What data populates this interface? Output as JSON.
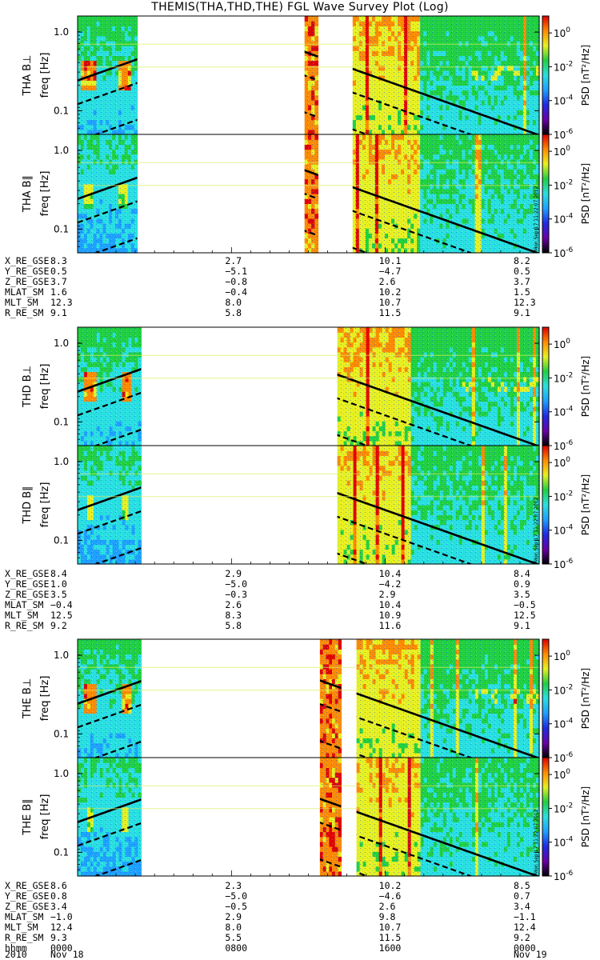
{
  "chart_data": {
    "type": "heatmap",
    "title": "THEMIS(THA,THD,THE) FGL Wave Survey Plot (Log)",
    "x_tick_labels": [
      "0000",
      "0800",
      "1600",
      "0000"
    ],
    "x_date_labels": [
      "2010",
      "Nov 18",
      "Nov 19"
    ],
    "x_unit_label": "hhmm",
    "ylim_hz": [
      0.05,
      1.6
    ],
    "y_scale": "log",
    "y_tick_labels": [
      "0.1",
      "1.0"
    ],
    "colorbar": {
      "label": "PSD [nT²/Hz]",
      "scale": "log",
      "range": [
        1e-06,
        10
      ],
      "tick_exponents": [
        "0",
        "-2",
        "-4",
        "-6"
      ],
      "colormap": [
        "#000000",
        "#6a00a8",
        "#1e2be6",
        "#1ea0ff",
        "#29e0e0",
        "#20d040",
        "#e8f020",
        "#ff8a00",
        "#e00000"
      ]
    },
    "stamp": "Mon Sep 17 11:22:07 2012",
    "panels": [
      {
        "probe": "THA",
        "label": "THA B⊥",
        "component": "perp",
        "data_intervals": [
          [
            0.0,
            3.1
          ],
          [
            11.8,
            12.5
          ],
          [
            14.3,
            24.0
          ]
        ]
      },
      {
        "probe": "THA",
        "label": "THA B∥",
        "component": "par",
        "data_intervals": [
          [
            0.0,
            3.1
          ],
          [
            11.8,
            12.5
          ],
          [
            14.3,
            24.0
          ]
        ]
      },
      {
        "probe": "THD",
        "label": "THD B⊥",
        "component": "perp",
        "data_intervals": [
          [
            0.0,
            3.3
          ],
          [
            13.5,
            24.0
          ]
        ]
      },
      {
        "probe": "THD",
        "label": "THD B∥",
        "component": "par",
        "data_intervals": [
          [
            0.0,
            3.3
          ],
          [
            13.5,
            24.0
          ]
        ]
      },
      {
        "probe": "THE",
        "label": "THE B⊥",
        "component": "perp",
        "data_intervals": [
          [
            0.0,
            3.3
          ],
          [
            12.6,
            13.7
          ],
          [
            14.5,
            24.0
          ]
        ]
      },
      {
        "probe": "THE",
        "label": "THE B∥",
        "component": "par",
        "data_intervals": [
          [
            0.0,
            3.3
          ],
          [
            12.6,
            13.7
          ],
          [
            14.5,
            24.0
          ]
        ]
      }
    ],
    "ephemeris": [
      {
        "probe": "THA",
        "rows": [
          {
            "name": "X_RE_GSE",
            "values": [
              "8.3",
              "2.7",
              "10.1",
              "8.2"
            ]
          },
          {
            "name": "Y_RE_GSE",
            "values": [
              "0.5",
              "−5.1",
              "−4.7",
              "0.5"
            ]
          },
          {
            "name": "Z_RE_GSE",
            "values": [
              "3.7",
              "−0.8",
              "2.6",
              "3.7"
            ]
          },
          {
            "name": "MLAT_SM",
            "values": [
              "1.6",
              "−0.4",
              "10.2",
              "1.5"
            ]
          },
          {
            "name": "MLT_SM",
            "values": [
              "12.3",
              "8.0",
              "10.7",
              "12.3"
            ]
          },
          {
            "name": "R_RE_SM",
            "values": [
              "9.1",
              "5.8",
              "11.5",
              "9.1"
            ]
          }
        ]
      },
      {
        "probe": "THD",
        "rows": [
          {
            "name": "X_RE_GSE",
            "values": [
              "8.4",
              "2.9",
              "10.4",
              "8.4"
            ]
          },
          {
            "name": "Y_RE_GSE",
            "values": [
              "1.0",
              "−5.0",
              "−4.2",
              "0.9"
            ]
          },
          {
            "name": "Z_RE_GSE",
            "values": [
              "3.5",
              "−0.3",
              "2.9",
              "3.5"
            ]
          },
          {
            "name": "MLAT_SM",
            "values": [
              "−0.4",
              "2.6",
              "10.4",
              "−0.5"
            ]
          },
          {
            "name": "MLT_SM",
            "values": [
              "12.5",
              "8.3",
              "10.9",
              "12.5"
            ]
          },
          {
            "name": "R_RE_SM",
            "values": [
              "9.2",
              "5.8",
              "11.6",
              "9.1"
            ]
          }
        ]
      },
      {
        "probe": "THE",
        "rows": [
          {
            "name": "X_RE_GSE",
            "values": [
              "8.6",
              "2.3",
              "10.2",
              "8.5"
            ]
          },
          {
            "name": "Y_RE_GSE",
            "values": [
              "0.8",
              "−5.0",
              "−4.6",
              "0.7"
            ]
          },
          {
            "name": "Z_RE_GSE",
            "values": [
              "3.4",
              "−0.5",
              "2.6",
              "3.4"
            ]
          },
          {
            "name": "MLAT_SM",
            "values": [
              "−1.0",
              "2.9",
              "9.8",
              "−1.1"
            ]
          },
          {
            "name": "MLT_SM",
            "values": [
              "12.4",
              "8.0",
              "10.7",
              "12.4"
            ]
          },
          {
            "name": "R_RE_SM",
            "values": [
              "9.3",
              "5.5",
              "11.5",
              "9.2"
            ]
          }
        ]
      }
    ]
  }
}
